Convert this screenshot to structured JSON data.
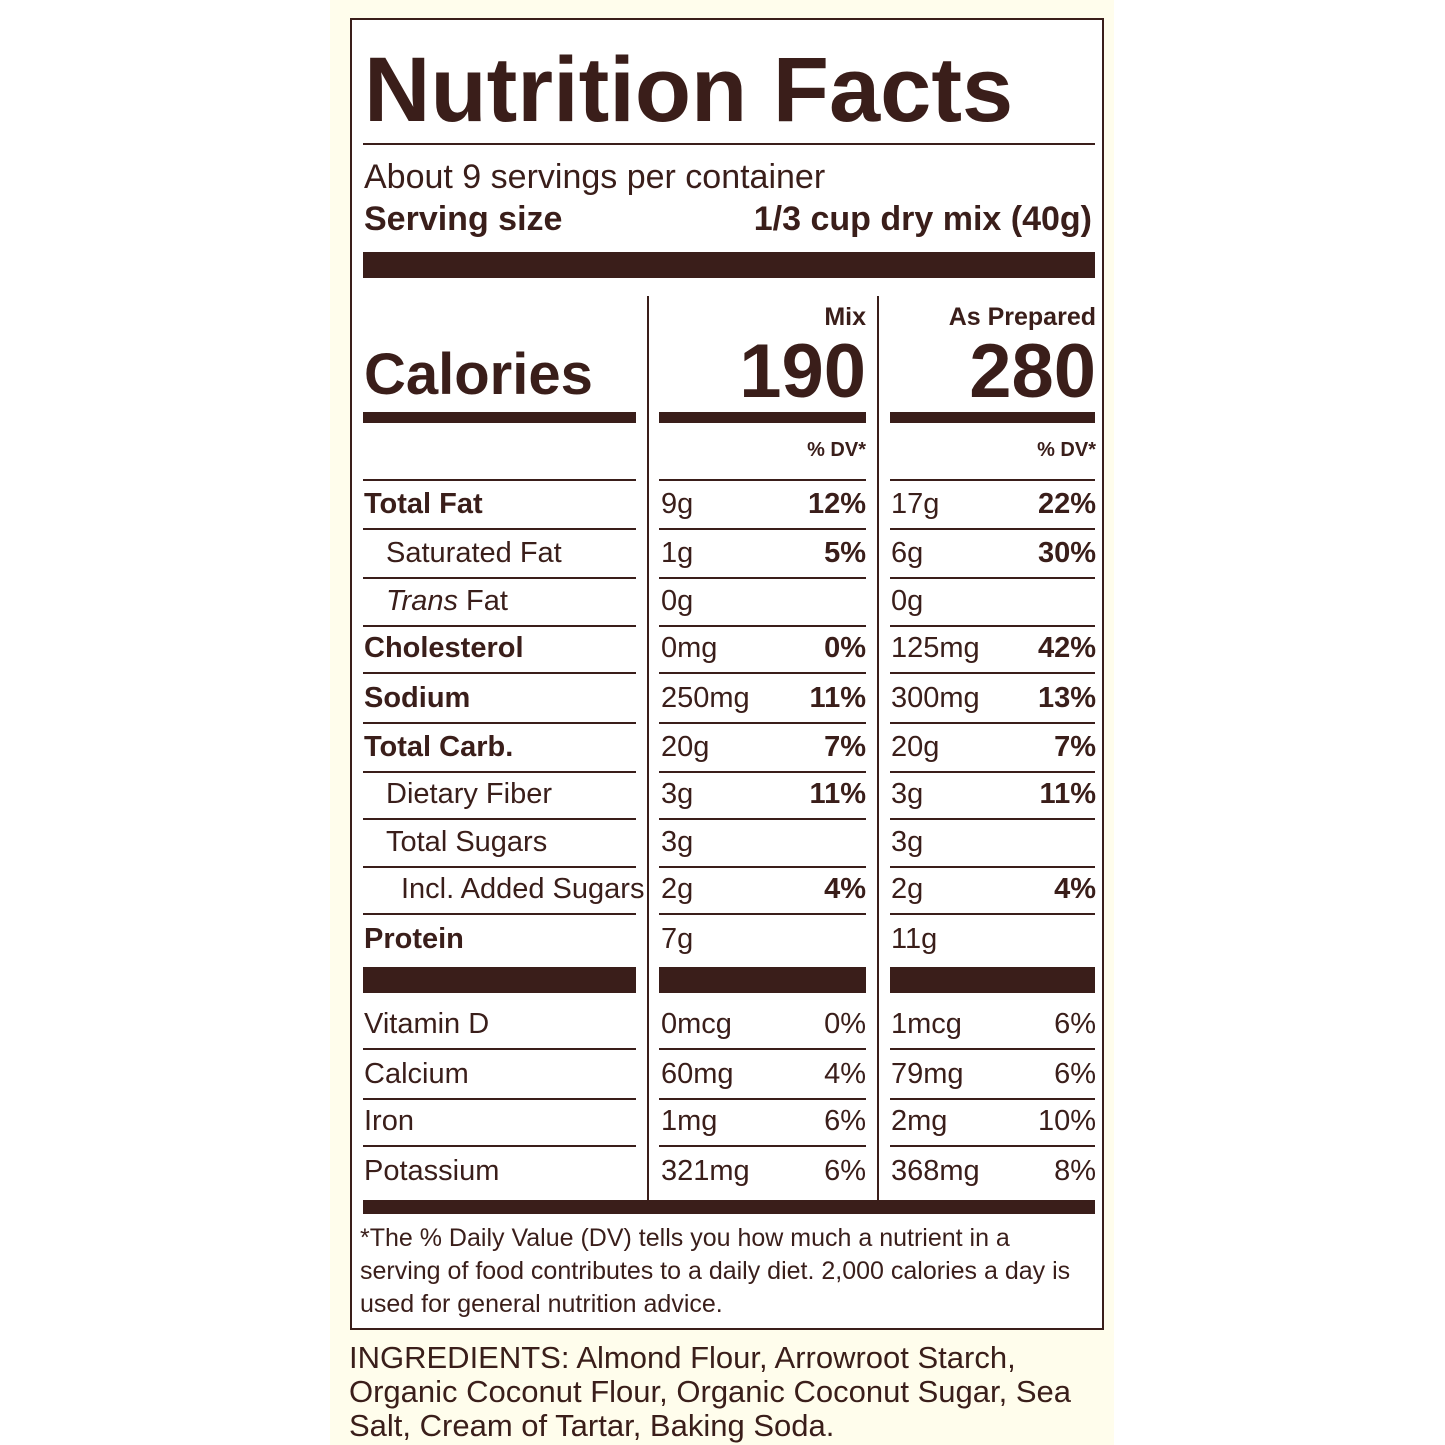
{
  "title": "Nutrition Facts",
  "servings_per_container": "About 9 servings per container",
  "serving_size_label": "Serving size",
  "serving_size_value": "1/3 cup dry mix (40g)",
  "columns": {
    "mix": "Mix",
    "prepared": "As Prepared"
  },
  "calories": {
    "label": "Calories",
    "mix": "190",
    "prepared": "280"
  },
  "dv_header": "% DV*",
  "nutrients": [
    {
      "name": "Total Fat",
      "bold": true,
      "indent": 0,
      "mix_amount": "9g",
      "mix_dv": "12%",
      "prep_amount": "17g",
      "prep_dv": "22%"
    },
    {
      "name": "Saturated Fat",
      "bold": false,
      "indent": 1,
      "mix_amount": "1g",
      "mix_dv": "5%",
      "prep_amount": "6g",
      "prep_dv": "30%"
    },
    {
      "name_italic": "Trans",
      "name": " Fat",
      "bold": false,
      "indent": 1,
      "mix_amount": "0g",
      "mix_dv": "",
      "prep_amount": "0g",
      "prep_dv": ""
    },
    {
      "name": "Cholesterol",
      "bold": true,
      "indent": 0,
      "mix_amount": "0mg",
      "mix_dv": "0%",
      "prep_amount": "125mg",
      "prep_dv": "42%"
    },
    {
      "name": "Sodium",
      "bold": true,
      "indent": 0,
      "mix_amount": "250mg",
      "mix_dv": "11%",
      "prep_amount": "300mg",
      "prep_dv": "13%"
    },
    {
      "name": "Total Carb.",
      "bold": true,
      "indent": 0,
      "mix_amount": "20g",
      "mix_dv": "7%",
      "prep_amount": "20g",
      "prep_dv": "7%"
    },
    {
      "name": "Dietary Fiber",
      "bold": false,
      "indent": 1,
      "mix_amount": "3g",
      "mix_dv": "11%",
      "prep_amount": "3g",
      "prep_dv": "11%"
    },
    {
      "name": "Total Sugars",
      "bold": false,
      "indent": 1,
      "mix_amount": "3g",
      "mix_dv": "",
      "prep_amount": "3g",
      "prep_dv": ""
    },
    {
      "name": "Incl. Added Sugars",
      "bold": false,
      "indent": 2,
      "mix_amount": "2g",
      "mix_dv": "4%",
      "prep_amount": "2g",
      "prep_dv": "4%"
    },
    {
      "name": "Protein",
      "bold": true,
      "indent": 0,
      "mix_amount": "7g",
      "mix_dv": "",
      "prep_amount": "11g",
      "prep_dv": ""
    }
  ],
  "vitamins": [
    {
      "name": "Vitamin D",
      "mix_amount": "0mcg",
      "mix_dv": "0%",
      "prep_amount": "1mcg",
      "prep_dv": "6%"
    },
    {
      "name": "Calcium",
      "mix_amount": "60mg",
      "mix_dv": "4%",
      "prep_amount": "79mg",
      "prep_dv": "6%"
    },
    {
      "name": "Iron",
      "mix_amount": "1mg",
      "mix_dv": "6%",
      "prep_amount": "2mg",
      "prep_dv": "10%"
    },
    {
      "name": "Potassium",
      "mix_amount": "321mg",
      "mix_dv": "6%",
      "prep_amount": "368mg",
      "prep_dv": "8%"
    }
  ],
  "footnote": "*The % Daily Value (DV) tells you how much a nutrient in a serving of food contributes to a daily diet. 2,000 calories a day is used for general nutrition advice.",
  "ingredients": "INGREDIENTS: Almond Flour, Arrowroot Starch, Organic Coconut Flour, Organic Coconut Sugar, Sea Salt, Cream of Tartar, Baking Soda.",
  "colors": {
    "ink": "#3a1e1a",
    "panel": "#fffdec"
  }
}
